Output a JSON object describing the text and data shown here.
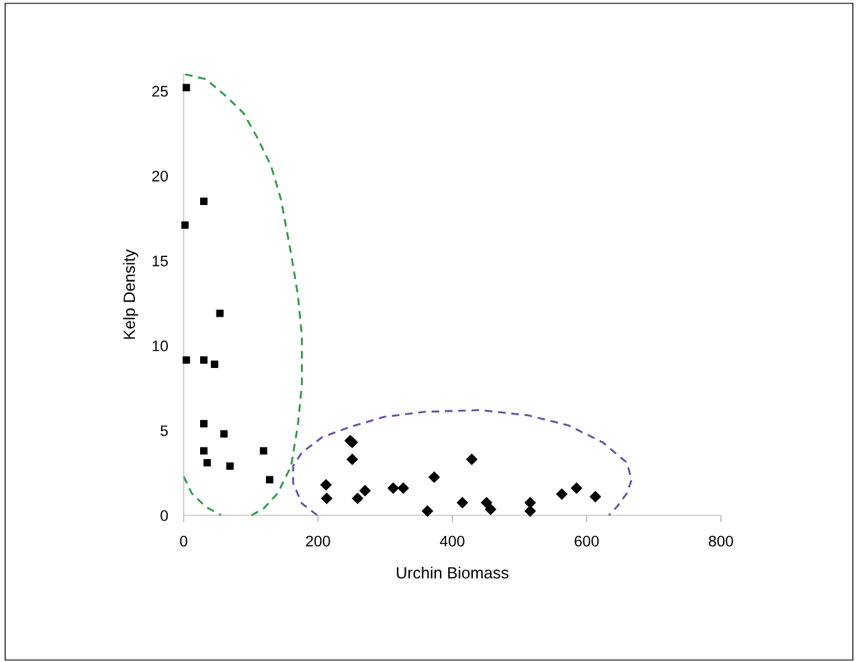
{
  "chart_data": {
    "type": "scatter",
    "xlabel": "Urchin Biomass",
    "ylabel": "Kelp Density",
    "xlim": [
      0,
      800
    ],
    "xticks": [
      0,
      200,
      400,
      600,
      800
    ],
    "ylim": [
      0,
      26
    ],
    "yticks": [
      0,
      5,
      10,
      15,
      20,
      25
    ],
    "grid": false,
    "legend": false,
    "series": [
      {
        "color": "#000000",
        "marker": "square",
        "x": [
          4,
          30,
          2,
          54,
          4,
          30,
          46,
          30,
          60,
          30,
          119,
          35,
          69,
          128
        ],
        "values": [
          25.2,
          18.5,
          17.1,
          11.9,
          9.15,
          9.15,
          8.9,
          5.4,
          4.8,
          3.8,
          3.8,
          3.1,
          2.9,
          2.1
        ]
      },
      {
        "type": "line",
        "color": "#2e9a43",
        "marker": "none",
        "line_style": "dashed",
        "x": [
          0,
          12,
          33,
          56,
          null,
          101,
          119,
          140,
          160,
          170,
          176,
          176,
          170,
          160,
          145,
          130,
          109,
          89,
          63,
          33,
          0
        ],
        "values": [
          2.3,
          1.3,
          0.5,
          0,
          null,
          0,
          0.4,
          1.3,
          2.9,
          5.3,
          7.7,
          10.6,
          13,
          15.4,
          18.6,
          20.6,
          22.3,
          23.7,
          24.7,
          25.7,
          26
        ]
      },
      {
        "type": "line",
        "color": "#6a4fa3",
        "marker": "none",
        "line_style": "dashed",
        "x": [
          199,
          176,
          163,
          163,
          176,
          206,
          247,
          298,
          359,
          441,
          512,
          573,
          624,
          660,
          667,
          660,
          645,
          633
        ],
        "values": [
          0,
          0.7,
          1.9,
          2.9,
          3.7,
          4.6,
          5.2,
          5.8,
          6.1,
          6.2,
          5.9,
          5.3,
          4.3,
          3.1,
          2.1,
          1.3,
          0.5,
          0
        ]
      },
      {
        "color": "#000000",
        "marker": "diamond",
        "x": [
          212,
          213,
          248,
          251,
          251,
          259,
          270,
          312,
          327,
          363,
          373,
          415,
          429,
          451,
          457,
          516,
          516,
          563,
          585,
          613
        ],
        "values": [
          1.8,
          1.0,
          4.4,
          4.3,
          3.3,
          1.0,
          1.45,
          1.6,
          1.6,
          0.25,
          2.25,
          0.75,
          3.3,
          0.75,
          0.35,
          0.75,
          0.25,
          1.25,
          1.6,
          1.1
        ]
      }
    ]
  }
}
